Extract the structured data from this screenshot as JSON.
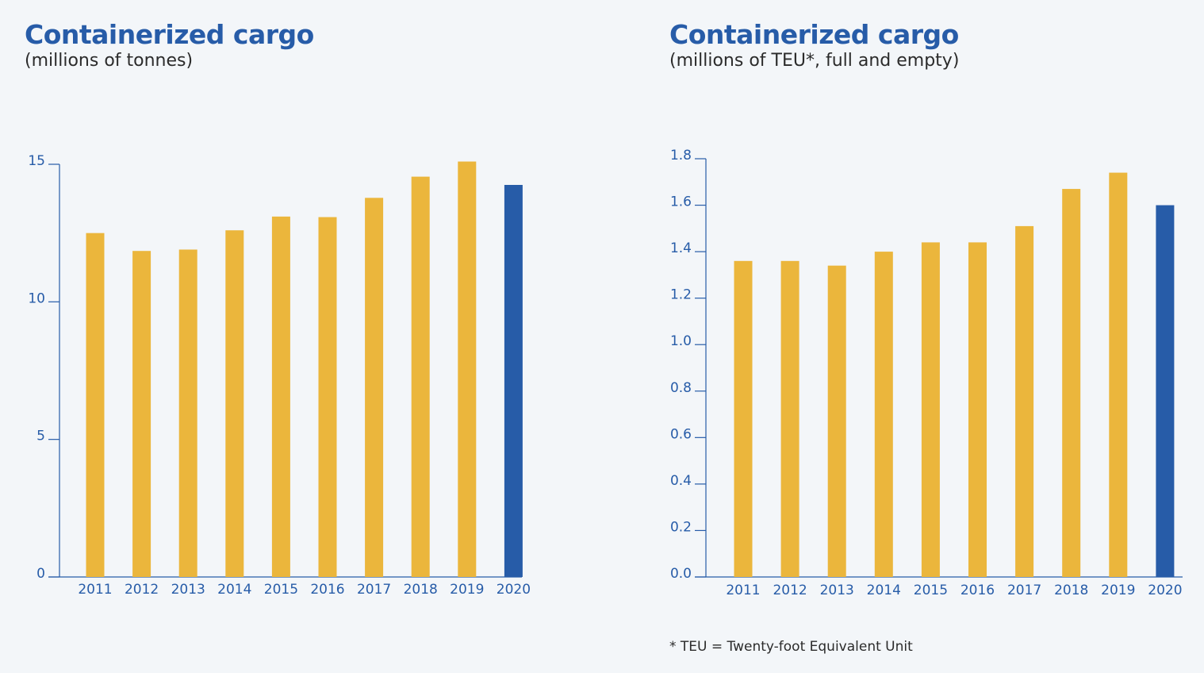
{
  "colors": {
    "highlight": "#275ca8",
    "bar": "#ebb63c",
    "axis": "#275ca8",
    "background": "#f3f6f9"
  },
  "chart_data": [
    {
      "type": "bar",
      "title": "Containerized cargo",
      "subtitle": "(millions of tonnes)",
      "categories": [
        "2011",
        "2012",
        "2013",
        "2014",
        "2015",
        "2016",
        "2017",
        "2018",
        "2019",
        "2020"
      ],
      "values": [
        12.5,
        11.85,
        11.9,
        12.6,
        13.1,
        13.08,
        13.78,
        14.55,
        15.1,
        14.25
      ],
      "highlight_index": 9,
      "ylim": [
        0,
        15
      ],
      "yticks": [
        0,
        5,
        10,
        15
      ],
      "ytick_labels": [
        "0",
        "5",
        "10",
        "15"
      ],
      "xlabel": "",
      "ylabel": "",
      "grid": false
    },
    {
      "type": "bar",
      "title": "Containerized cargo",
      "subtitle": "(millions of TEU*, full and empty)",
      "categories": [
        "2011",
        "2012",
        "2013",
        "2014",
        "2015",
        "2016",
        "2017",
        "2018",
        "2019",
        "2020"
      ],
      "values": [
        1.36,
        1.36,
        1.34,
        1.4,
        1.44,
        1.44,
        1.51,
        1.67,
        1.74,
        1.6
      ],
      "highlight_index": 9,
      "ylim": [
        0,
        1.8
      ],
      "yticks": [
        0,
        0.2,
        0.4,
        0.6,
        0.8,
        1.0,
        1.2,
        1.4,
        1.6,
        1.8
      ],
      "ytick_labels": [
        "0.0",
        "0.2",
        "0.4",
        "0.6",
        "0.8",
        "1.0",
        "1.2",
        "1.4",
        "1.6",
        "1.8"
      ],
      "xlabel": "",
      "ylabel": "",
      "grid": false
    }
  ],
  "footnote": "* TEU = Twenty-foot Equivalent Unit"
}
